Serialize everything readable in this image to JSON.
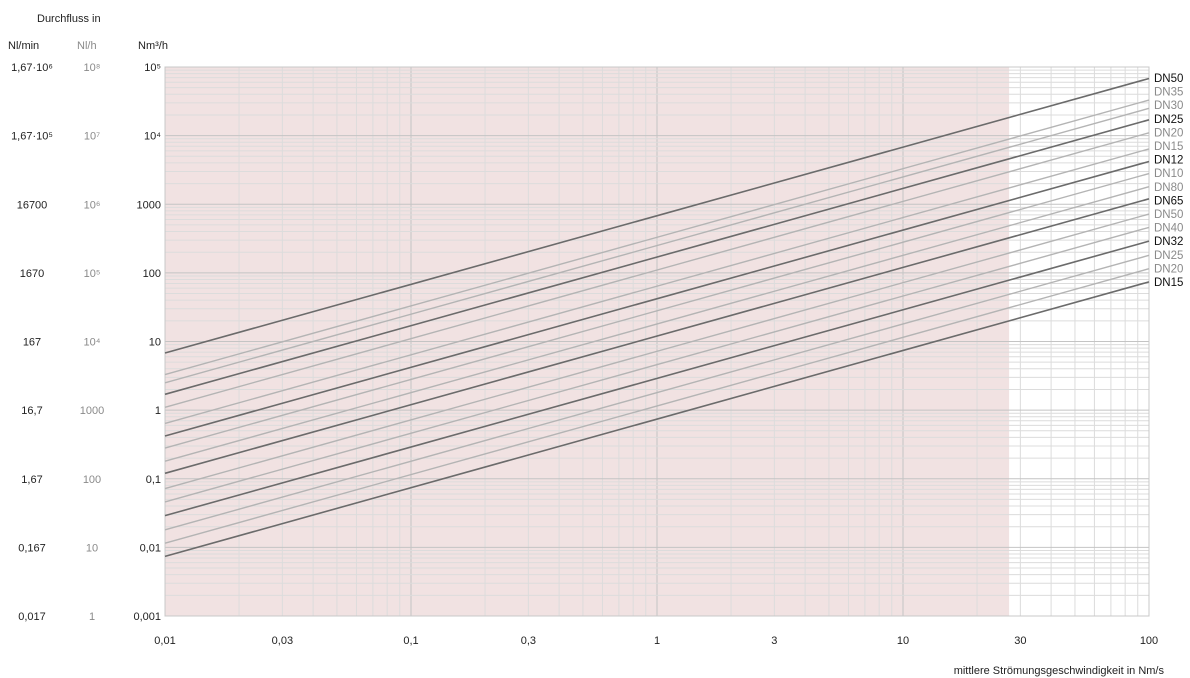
{
  "header": {
    "title": "Durchfluss in",
    "col_nlmin": "Nl/min",
    "col_nlh": "Nl/h",
    "col_nm3h": "Nm³/h"
  },
  "chart_data": {
    "type": "line",
    "log_x": true,
    "log_y": true,
    "xlim": [
      0.01,
      100
    ],
    "ylim": [
      0.001,
      100000
    ],
    "shaded_region_x": [
      0.01,
      27
    ],
    "shade_color": "#f1e2e2",
    "xlabel": "mittlere Strömungsgeschwindigkeit in Nm/s",
    "x_ticks": [
      "0,01",
      "0,03",
      "0,1",
      "0,3",
      "1",
      "3",
      "10",
      "30",
      "100"
    ],
    "x_tick_values": [
      0.01,
      0.03,
      0.1,
      0.3,
      1,
      3,
      10,
      30,
      100
    ],
    "y_tick_values": [
      0.001,
      0.01,
      0.1,
      1,
      10,
      100,
      1000,
      10000,
      100000
    ],
    "y_ticks_nm3h": [
      "0,001",
      "0,01",
      "0,1",
      "1",
      "10",
      "100",
      "1000",
      "10⁴",
      "10⁵"
    ],
    "y_ticks_nlh": [
      "1",
      "10",
      "100",
      "1000",
      "10⁴",
      "10⁵",
      "10⁶",
      "10⁷",
      "10⁸"
    ],
    "y_ticks_nlmin": [
      "0,017",
      "0,167",
      "1,67",
      "16,7",
      "167",
      "1670",
      "16700",
      "1,67·10⁵",
      "1,67·10⁶"
    ],
    "series": [
      {
        "name": "DN50",
        "emphasis": "dark",
        "y_at_x001": 6.8,
        "y_at_x100": 68000
      },
      {
        "name": "DN35",
        "emphasis": "light",
        "y_at_x001": 3.3,
        "y_at_x100": 33000
      },
      {
        "name": "DN30",
        "emphasis": "light",
        "y_at_x001": 2.5,
        "y_at_x100": 25000
      },
      {
        "name": "DN25",
        "emphasis": "dark",
        "y_at_x001": 1.7,
        "y_at_x100": 17000
      },
      {
        "name": "DN20",
        "emphasis": "light",
        "y_at_x001": 1.1,
        "y_at_x100": 11000
      },
      {
        "name": "DN15",
        "emphasis": "light",
        "y_at_x001": 0.64,
        "y_at_x100": 6400
      },
      {
        "name": "DN12",
        "emphasis": "dark",
        "y_at_x001": 0.42,
        "y_at_x100": 4200
      },
      {
        "name": "DN10",
        "emphasis": "light",
        "y_at_x001": 0.28,
        "y_at_x100": 2800
      },
      {
        "name": "DN80",
        "emphasis": "light",
        "y_at_x001": 0.18,
        "y_at_x100": 1800
      },
      {
        "name": "DN65",
        "emphasis": "dark",
        "y_at_x001": 0.12,
        "y_at_x100": 1200
      },
      {
        "name": "DN50",
        "emphasis": "light",
        "y_at_x001": 0.072,
        "y_at_x100": 720
      },
      {
        "name": "DN40",
        "emphasis": "light",
        "y_at_x001": 0.046,
        "y_at_x100": 460
      },
      {
        "name": "DN32",
        "emphasis": "dark",
        "y_at_x001": 0.029,
        "y_at_x100": 290
      },
      {
        "name": "DN25",
        "emphasis": "light",
        "y_at_x001": 0.018,
        "y_at_x100": 180
      },
      {
        "name": "DN20",
        "emphasis": "light",
        "y_at_x001": 0.0115,
        "y_at_x100": 115
      },
      {
        "name": "DN15",
        "emphasis": "dark",
        "y_at_x001": 0.0074,
        "y_at_x100": 74
      }
    ]
  }
}
